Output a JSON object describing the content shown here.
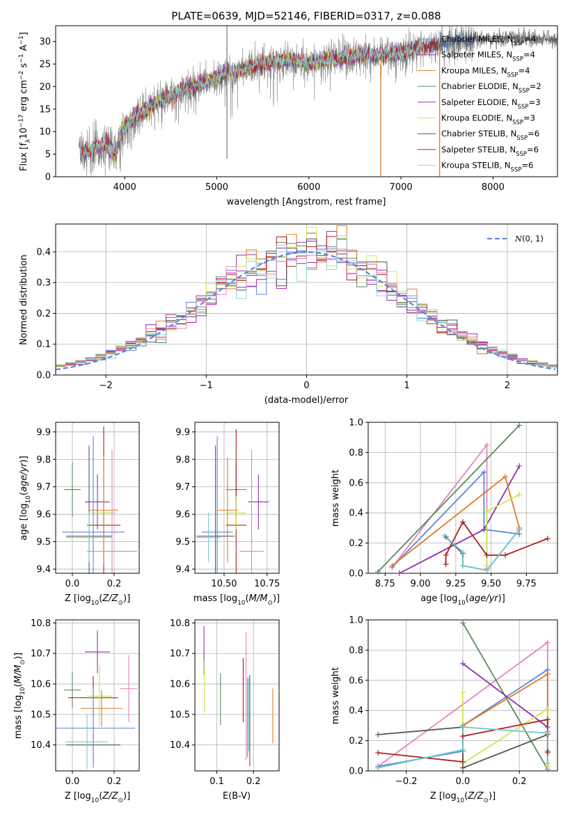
{
  "title": "PLATE=0639, MJD=52146, FIBERID=0317, z=0.088",
  "colors": {
    "chabrier_miles": "#5b87d8",
    "salpeter_miles": "#8e2fb0",
    "kroupa_miles": "#e07b22",
    "chabrier_elodie": "#5a8a5e",
    "salpeter_elodie": "#b21fb2",
    "kroupa_elodie": "#d5e84e",
    "chabrier_stelib": "#555555",
    "salpeter_stelib": "#b01c1c",
    "kroupa_stelib": "#8fd6e0",
    "pink": "#e383bf",
    "green": "#5a8a5e",
    "yellowgreen": "#c8e84a",
    "cyan": "#72c8d0",
    "normal_curve": "#5b87d8",
    "grey_spectrum": "#808080"
  },
  "legend_spectrum": [
    {
      "text": "Chabrier MILES, N",
      "sub": "SSP",
      "tail": "=4",
      "color": "#5b87d8"
    },
    {
      "text": "Salpeter MILES, N",
      "sub": "SSP",
      "tail": "=4",
      "color": "#8e2fb0"
    },
    {
      "text": "Kroupa MILES, N",
      "sub": "SSP",
      "tail": "=4",
      "color": "#e07b22"
    },
    {
      "text": "Chabrier ELODIE, N",
      "sub": "SSP",
      "tail": "=2",
      "color": "#5a8a5e"
    },
    {
      "text": "Salpeter ELODIE, N",
      "sub": "SSP",
      "tail": "=3",
      "color": "#b21fb2"
    },
    {
      "text": "Kroupa ELODIE, N",
      "sub": "SSP",
      "tail": "=3",
      "color": "#d5e84e"
    },
    {
      "text": "Chabrier STELIB, N",
      "sub": "SSP",
      "tail": "=6",
      "color": "#555555"
    },
    {
      "text": "Salpeter STELIB, N",
      "sub": "SSP",
      "tail": "=6",
      "color": "#b01c1c"
    },
    {
      "text": "Kroupa STELIB, N",
      "sub": "SSP",
      "tail": "=6",
      "color": "#8fd6e0"
    }
  ],
  "chart_data": [
    {
      "type": "line",
      "panel": "spectrum",
      "xlabel": "wavelength [Angstrom, rest frame]",
      "ylabel": "Flux [f_λ 10^-17 erg cm^-2 s^-1 A^-1]",
      "xlim": [
        3250,
        8700
      ],
      "ylim": [
        0,
        33.5
      ],
      "xticks": [
        4000,
        5000,
        6000,
        7000,
        8000
      ],
      "yticks": [
        0,
        5,
        10,
        15,
        20,
        25,
        30
      ],
      "continuum": {
        "x": [
          3500,
          3650,
          3800,
          3900,
          3950,
          4000,
          4100,
          4200,
          4400,
          4600,
          4800,
          5000,
          5200,
          5400,
          5600,
          5800,
          6000,
          6200,
          6400,
          6600,
          6800,
          7000,
          7200,
          7400,
          7600,
          7800,
          8000,
          8200,
          8400
        ],
        "y": [
          5,
          6,
          7.5,
          5,
          9,
          11,
          13,
          14.5,
          17,
          19,
          20.5,
          22,
          23.5,
          24.5,
          25.5,
          26,
          25,
          26,
          26.5,
          27,
          27,
          27.5,
          28.5,
          29.5,
          30,
          30.5,
          30.5,
          31,
          30.5
        ]
      },
      "series_ends": [
        7800,
        7250,
        6800,
        7250,
        7250,
        7250,
        8700,
        7400,
        7250
      ],
      "spikes": [
        {
          "x": 5110,
          "y_low": 4,
          "y_high": 33.5,
          "color": "#808080"
        },
        {
          "x": 6780,
          "y_low": 0,
          "y_high": 25,
          "color": "#e07b22"
        },
        {
          "x": 7420,
          "y_low": 0,
          "y_high": 29,
          "color": "#e07b22"
        }
      ]
    },
    {
      "type": "line",
      "panel": "residual-distribution",
      "xlabel": "(data-model)/error",
      "ylabel": "Normed distribution",
      "xlim": [
        -2.5,
        2.5
      ],
      "ylim": [
        0,
        0.49
      ],
      "xticks": [
        -2,
        -1,
        0,
        1,
        2
      ],
      "yticks": [
        0.0,
        0.1,
        0.2,
        0.3,
        0.4
      ],
      "legend": "N(0,1)",
      "bin_width": 0.1
    },
    {
      "type": "scatter",
      "panel": "age-vs-Z",
      "xlabel": "Z [log10(Z/Z☉)]",
      "ylabel": "age [log10(age/yr)]",
      "xlim": [
        -0.08,
        0.32
      ],
      "ylim": [
        9.385,
        9.935
      ],
      "xticks": [
        0.0,
        0.2
      ],
      "yticks": [
        9.4,
        9.5,
        9.6,
        9.7,
        9.8,
        9.9
      ],
      "points": [
        {
          "x": 0.0,
          "y": 9.69,
          "dx": 0.04,
          "dy": 0.1,
          "color": "#5a8a5e"
        },
        {
          "x": 0.08,
          "y": 9.52,
          "dx": 0.11,
          "dy": 0.33,
          "color": "#555555"
        },
        {
          "x": 0.12,
          "y": 9.645,
          "dx": 0.06,
          "dy": 0.1,
          "color": "#8e2fb0"
        },
        {
          "x": 0.15,
          "y": 9.56,
          "dx": 0.08,
          "dy": 0.36,
          "color": "#b01c1c"
        },
        {
          "x": 0.15,
          "y": 9.605,
          "dx": 0.06,
          "dy": 0.06,
          "color": "#c8e84a"
        },
        {
          "x": 0.15,
          "y": 9.615,
          "dx": 0.07,
          "dy": 0.2,
          "color": "#e07b22"
        },
        {
          "x": 0.1,
          "y": 9.535,
          "dx": 0.15,
          "dy": 0.35,
          "color": "#5b87d8"
        },
        {
          "x": 0.08,
          "y": 9.515,
          "dx": 0.11,
          "dy": 0.09,
          "color": "#72c8d0"
        },
        {
          "x": 0.19,
          "y": 9.465,
          "dx": 0.12,
          "dy": 0.37,
          "color": "#e383bf"
        }
      ]
    },
    {
      "type": "scatter",
      "panel": "age-vs-mass",
      "xlabel": "mass [log10(M/M☉)]",
      "ylabel": "",
      "xlim": [
        10.33,
        10.82
      ],
      "ylim": [
        9.385,
        9.935
      ],
      "xticks": [
        10.5,
        10.75
      ],
      "yticks": [
        9.4,
        9.5,
        9.6,
        9.7,
        9.8,
        9.9
      ],
      "points": [
        {
          "x": 10.57,
          "y": 9.69,
          "dx": 0.06,
          "dy": 0.1,
          "color": "#5a8a5e"
        },
        {
          "x": 10.45,
          "y": 9.52,
          "dx": 0.11,
          "dy": 0.33,
          "color": "#555555"
        },
        {
          "x": 10.7,
          "y": 9.645,
          "dx": 0.06,
          "dy": 0.1,
          "color": "#8e2fb0"
        },
        {
          "x": 10.57,
          "y": 9.56,
          "dx": 0.06,
          "dy": 0.35,
          "color": "#b01c1c"
        },
        {
          "x": 10.57,
          "y": 9.605,
          "dx": 0.06,
          "dy": 0.06,
          "color": "#c8e84a"
        },
        {
          "x": 10.52,
          "y": 9.615,
          "dx": 0.06,
          "dy": 0.19,
          "color": "#e07b22"
        },
        {
          "x": 10.46,
          "y": 9.535,
          "dx": 0.09,
          "dy": 0.35,
          "color": "#5b87d8"
        },
        {
          "x": 10.41,
          "y": 9.515,
          "dx": 0.07,
          "dy": 0.09,
          "color": "#72c8d0"
        },
        {
          "x": 10.66,
          "y": 9.465,
          "dx": 0.07,
          "dy": 0.37,
          "color": "#e383bf"
        }
      ]
    },
    {
      "type": "line",
      "panel": "mass-weight-vs-age",
      "xlabel": "age [log10(age/yr)]",
      "ylabel": "mass weight",
      "xlim": [
        8.63,
        9.97
      ],
      "ylim": [
        0,
        1
      ],
      "xticks": [
        8.75,
        9.0,
        9.25,
        9.5,
        9.75
      ],
      "yticks": [
        0.0,
        0.2,
        0.4,
        0.6,
        0.8,
        1.0
      ],
      "series": [
        {
          "color": "#e383bf",
          "x": [
            8.8,
            9.47,
            9.47,
            9.47
          ],
          "y": [
            0.04,
            0.85,
            0.03,
            0.03
          ]
        },
        {
          "color": "#5b87d8",
          "x": [
            8.8,
            9.45,
            9.45,
            9.7,
            9.7
          ],
          "y": [
            0.04,
            0.67,
            0.29,
            0.26,
            0.26
          ]
        },
        {
          "color": "#5a8a5e",
          "x": [
            8.7,
            9.7
          ],
          "y": [
            0.01,
            0.98
          ]
        },
        {
          "color": "#8e2fb0",
          "x": [
            8.85,
            9.45,
            9.7
          ],
          "y": [
            0.0,
            0.29,
            0.71
          ]
        },
        {
          "color": "#e07b22",
          "x": [
            8.8,
            9.6,
            9.7
          ],
          "y": [
            0.05,
            0.64,
            0.3
          ]
        },
        {
          "color": "#c8e84a",
          "x": [
            9.47,
            9.47,
            9.7,
            9.7
          ],
          "y": [
            0.05,
            0.41,
            0.52,
            0.52
          ]
        },
        {
          "color": "#b01c1c",
          "x": [
            9.18,
            9.18,
            9.3,
            9.47,
            9.6,
            9.9
          ],
          "y": [
            0.06,
            0.12,
            0.34,
            0.12,
            0.12,
            0.23
          ]
        },
        {
          "color": "#555555",
          "x": [
            9.18,
            9.3,
            9.3,
            9.47,
            9.7,
            9.7
          ],
          "y": [
            0.24,
            0.13,
            0.05,
            0.02,
            0.29,
            0.29
          ]
        },
        {
          "color": "#72c8d0",
          "x": [
            9.17,
            9.3,
            9.3,
            9.47,
            9.7
          ],
          "y": [
            0.25,
            0.14,
            0.05,
            0.02,
            0.29
          ]
        }
      ]
    },
    {
      "type": "scatter",
      "panel": "mass-vs-Z",
      "xlabel": "Z [log10(Z/Z☉)]",
      "ylabel": "mass [log10(M/M☉)]",
      "xlim": [
        -0.08,
        0.32
      ],
      "ylim": [
        10.315,
        10.81
      ],
      "xticks": [
        0.0,
        0.2
      ],
      "yticks": [
        10.4,
        10.5,
        10.6,
        10.7,
        10.8
      ],
      "points": [
        {
          "x": 0.0,
          "y": 10.58,
          "dx": 0.04,
          "dy": 0.06,
          "color": "#5a8a5e"
        },
        {
          "x": 0.1,
          "y": 10.4,
          "dx": 0.13,
          "dy": 0.06,
          "color": "#555555"
        },
        {
          "x": 0.12,
          "y": 10.705,
          "dx": 0.06,
          "dy": 0.07,
          "color": "#8e2fb0"
        },
        {
          "x": 0.1,
          "y": 10.555,
          "dx": 0.12,
          "dy": 0.07,
          "color": "#b01c1c"
        },
        {
          "x": 0.13,
          "y": 10.56,
          "dx": 0.06,
          "dy": 0.1,
          "color": "#c8e84a"
        },
        {
          "x": 0.14,
          "y": 10.52,
          "dx": 0.1,
          "dy": 0.06,
          "color": "#e07b22"
        },
        {
          "x": 0.1,
          "y": 10.455,
          "dx": 0.2,
          "dy": 0.13,
          "color": "#5b87d8"
        },
        {
          "x": 0.07,
          "y": 10.41,
          "dx": 0.1,
          "dy": 0.09,
          "color": "#72c8d0"
        },
        {
          "x": 0.27,
          "y": 10.585,
          "dx": 0.04,
          "dy": 0.11,
          "color": "#e383bf"
        }
      ]
    },
    {
      "type": "scatter",
      "panel": "mass-vs-EBV",
      "xlabel": "E(B-V)",
      "ylabel": "",
      "xlim": [
        0.04,
        0.27
      ],
      "ylim": [
        10.315,
        10.81
      ],
      "xticks": [
        0.1,
        0.2
      ],
      "yticks": [
        10.4,
        10.5,
        10.6,
        10.7,
        10.8
      ],
      "points": [
        {
          "x": 0.065,
          "y": 10.71,
          "dy": 0.08,
          "color": "#8e2fb0"
        },
        {
          "x": 0.066,
          "y": 10.59,
          "dy": 0.085,
          "color": "#c8e84a"
        },
        {
          "x": 0.11,
          "y": 10.55,
          "dy": 0.085,
          "color": "#5a8a5e"
        },
        {
          "x": 0.172,
          "y": 10.58,
          "dy": 0.105,
          "color": "#b01c1c"
        },
        {
          "x": 0.18,
          "y": 10.56,
          "dy": 0.21,
          "color": "#e383bf"
        },
        {
          "x": 0.184,
          "y": 10.49,
          "dy": 0.13,
          "color": "#5b87d8"
        },
        {
          "x": 0.187,
          "y": 10.5,
          "dy": 0.12,
          "color": "#72c8d0"
        },
        {
          "x": 0.19,
          "y": 10.48,
          "dy": 0.15,
          "color": "#555555"
        },
        {
          "x": 0.253,
          "y": 10.495,
          "dy": 0.09,
          "color": "#e07b22"
        }
      ]
    },
    {
      "type": "line",
      "panel": "mass-weight-vs-Z",
      "xlabel": "Z [log10(Z/Z☉)]",
      "ylabel": "mass weight",
      "xlim": [
        -0.335,
        0.335
      ],
      "ylim": [
        0,
        1
      ],
      "xticks": [
        -0.2,
        0.0,
        0.2
      ],
      "yticks": [
        0.0,
        0.2,
        0.4,
        0.6,
        0.8,
        1.0
      ],
      "series": [
        {
          "color": "#e383bf",
          "x": [
            -0.3,
            0.3,
            0.3,
            0.3
          ],
          "y": [
            0.03,
            0.85,
            0.05,
            0.03
          ]
        },
        {
          "color": "#5b87d8",
          "x": [
            -0.3,
            0.0,
            0.0,
            0.3,
            0.3
          ],
          "y": [
            0.03,
            0.13,
            0.3,
            0.67,
            0.26
          ]
        },
        {
          "color": "#5a8a5e",
          "x": [
            0.0,
            0.3
          ],
          "y": [
            0.98,
            0.01
          ]
        },
        {
          "color": "#8e2fb0",
          "x": [
            0.0,
            0.3
          ],
          "y": [
            0.71,
            0.29
          ]
        },
        {
          "color": "#e07b22",
          "x": [
            0.0,
            0.3,
            0.3
          ],
          "y": [
            0.3,
            0.64,
            0.05
          ]
        },
        {
          "color": "#c8e84a",
          "x": [
            0.0,
            0.0,
            0.3,
            0.3
          ],
          "y": [
            0.52,
            0.05,
            0.41,
            0.03
          ]
        },
        {
          "color": "#b01c1c",
          "x": [
            -0.3,
            0.0,
            0.0,
            0.3,
            0.3
          ],
          "y": [
            0.12,
            0.06,
            0.23,
            0.34,
            0.12
          ]
        },
        {
          "color": "#555555",
          "x": [
            -0.3,
            0.0,
            0.0,
            0.3,
            0.3
          ],
          "y": [
            0.24,
            0.29,
            0.02,
            0.24,
            0.13
          ]
        },
        {
          "color": "#72c8d0",
          "x": [
            -0.3,
            0.0,
            0.0,
            0.3,
            0.3
          ],
          "y": [
            0.02,
            0.14,
            0.29,
            0.25,
            0.05
          ]
        }
      ]
    }
  ]
}
